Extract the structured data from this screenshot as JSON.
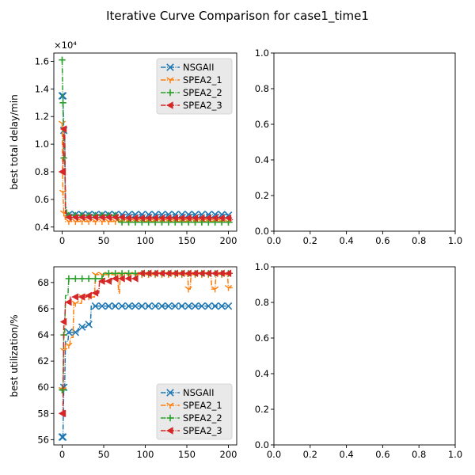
{
  "figure": {
    "suptitle": "Iterative Curve Comparison for case1_time1"
  },
  "colors": {
    "NSGAII": "#1f77b4",
    "SPEA2_1": "#ff7f0e",
    "SPEA2_2": "#2ca02c",
    "SPEA2_3": "#d62728"
  },
  "chart_data": [
    {
      "type": "line",
      "panel": "top-left",
      "title": "",
      "xlabel": "",
      "ylabel": "best total delay/min",
      "y_offset_text": "×10⁴",
      "xlim": [
        -10,
        210
      ],
      "ylim": [
        3700,
        16600
      ],
      "xticks": [
        0,
        50,
        100,
        150,
        200
      ],
      "xtick_labels": [
        "0",
        "50",
        "100",
        "150",
        "200"
      ],
      "yticks": [
        4000,
        6000,
        8000,
        10000,
        12000,
        14000,
        16000
      ],
      "ytick_labels": [
        "0.4",
        "0.6",
        "0.8",
        "1.0",
        "1.2",
        "1.4",
        "1.6"
      ],
      "legend": {
        "position": "top-right",
        "entries": [
          "NSGAII",
          "SPEA2_1",
          "SPEA2_2",
          "SPEA2_3"
        ]
      },
      "series": [
        {
          "name": "NSGAII",
          "marker": "x",
          "linestyle": "dashdot",
          "points": [
            [
              0,
              13500
            ],
            [
              2,
              11000
            ],
            [
              4,
              5200
            ],
            [
              6,
              4900
            ],
            [
              200,
              4850
            ]
          ]
        },
        {
          "name": "SPEA2_1",
          "marker": "tri_down",
          "linestyle": "dashdot",
          "points": [
            [
              0,
              11500
            ],
            [
              1,
              6500
            ],
            [
              2,
              5000
            ],
            [
              4,
              4400
            ],
            [
              200,
              4350
            ]
          ]
        },
        {
          "name": "SPEA2_2",
          "marker": "plus",
          "linestyle": "dashdot",
          "points": [
            [
              0,
              16100
            ],
            [
              1,
              13000
            ],
            [
              2,
              9000
            ],
            [
              4,
              5500
            ],
            [
              6,
              4850
            ],
            [
              65,
              4850
            ],
            [
              68,
              4350
            ],
            [
              205,
              4350
            ]
          ]
        },
        {
          "name": "SPEA2_3",
          "marker": "triangle_left",
          "linestyle": "dashdot",
          "points": [
            [
              0,
              8000
            ],
            [
              2,
              11100
            ],
            [
              4,
              5000
            ],
            [
              6,
              4700
            ],
            [
              80,
              4650
            ],
            [
              205,
              4500
            ]
          ]
        }
      ]
    },
    {
      "type": "line",
      "panel": "top-right",
      "empty": true,
      "xlim": [
        0,
        1
      ],
      "ylim": [
        0,
        1
      ],
      "xticks": [
        0,
        0.2,
        0.4,
        0.6,
        0.8,
        1.0
      ],
      "xtick_labels": [
        "0.0",
        "0.2",
        "0.4",
        "0.6",
        "0.8",
        "1.0"
      ],
      "yticks": [
        0,
        0.2,
        0.4,
        0.6,
        0.8,
        1.0
      ],
      "ytick_labels": [
        "0.0",
        "0.2",
        "0.4",
        "0.6",
        "0.8",
        "1.0"
      ]
    },
    {
      "type": "line",
      "panel": "bottom-left",
      "title": "",
      "xlabel": "",
      "ylabel": "best utilization/%",
      "xlim": [
        -10,
        210
      ],
      "ylim": [
        55.6,
        69.2
      ],
      "xticks": [
        0,
        50,
        100,
        150,
        200
      ],
      "xtick_labels": [
        "0",
        "50",
        "100",
        "150",
        "200"
      ],
      "yticks": [
        56,
        58,
        60,
        62,
        64,
        66,
        68
      ],
      "ytick_labels": [
        "56",
        "58",
        "60",
        "62",
        "64",
        "66",
        "68"
      ],
      "legend": {
        "position": "bottom-right",
        "entries": [
          "NSGAII",
          "SPEA2_1",
          "SPEA2_2",
          "SPEA2_3"
        ]
      },
      "series": [
        {
          "name": "NSGAII",
          "marker": "x",
          "linestyle": "dashdot",
          "points": [
            [
              0,
              56.2
            ],
            [
              2,
              60.0
            ],
            [
              4,
              63.5
            ],
            [
              8,
              64.2
            ],
            [
              20,
              64.6
            ],
            [
              30,
              64.8
            ],
            [
              35,
              66.2
            ],
            [
              200,
              66.2
            ]
          ]
        },
        {
          "name": "SPEA2_1",
          "marker": "tri_down",
          "linestyle": "dashdot",
          "points": [
            [
              0,
              59.8
            ],
            [
              2,
              62.8
            ],
            [
              4,
              63.2
            ],
            [
              10,
              63.8
            ],
            [
              14,
              66.4
            ],
            [
              24,
              66.9
            ],
            [
              40,
              68.6
            ],
            [
              65,
              68.6
            ],
            [
              68,
              67.2
            ],
            [
              70,
              68.6
            ],
            [
              150,
              68.6
            ],
            [
              152,
              67.5
            ],
            [
              155,
              68.6
            ],
            [
              178,
              68.6
            ],
            [
              180,
              67.5
            ],
            [
              185,
              68.6
            ],
            [
              198,
              68.6
            ],
            [
              200,
              67.6
            ],
            [
              205,
              67.6
            ]
          ]
        },
        {
          "name": "SPEA2_2",
          "marker": "plus",
          "linestyle": "dashdot",
          "points": [
            [
              0,
              59.8
            ],
            [
              2,
              64.0
            ],
            [
              4,
              67.0
            ],
            [
              8,
              68.3
            ],
            [
              45,
              68.3
            ],
            [
              50,
              68.7
            ],
            [
              205,
              68.7
            ]
          ]
        },
        {
          "name": "SPEA2_3",
          "marker": "triangle_left",
          "linestyle": "dashdot",
          "points": [
            [
              0,
              58.0
            ],
            [
              2,
              65.0
            ],
            [
              4,
              66.5
            ],
            [
              10,
              66.9
            ],
            [
              30,
              67.0
            ],
            [
              35,
              67.2
            ],
            [
              45,
              68.1
            ],
            [
              60,
              68.3
            ],
            [
              85,
              68.3
            ],
            [
              90,
              68.7
            ],
            [
              205,
              68.7
            ]
          ]
        }
      ]
    },
    {
      "type": "line",
      "panel": "bottom-right",
      "empty": true,
      "xlim": [
        0,
        1
      ],
      "ylim": [
        0,
        1
      ],
      "xticks": [
        0,
        0.2,
        0.4,
        0.6,
        0.8,
        1.0
      ],
      "xtick_labels": [
        "0.0",
        "0.2",
        "0.4",
        "0.6",
        "0.8",
        "1.0"
      ],
      "yticks": [
        0,
        0.2,
        0.4,
        0.6,
        0.8,
        1.0
      ],
      "ytick_labels": [
        "0.0",
        "0.2",
        "0.4",
        "0.6",
        "0.8",
        "1.0"
      ]
    }
  ]
}
